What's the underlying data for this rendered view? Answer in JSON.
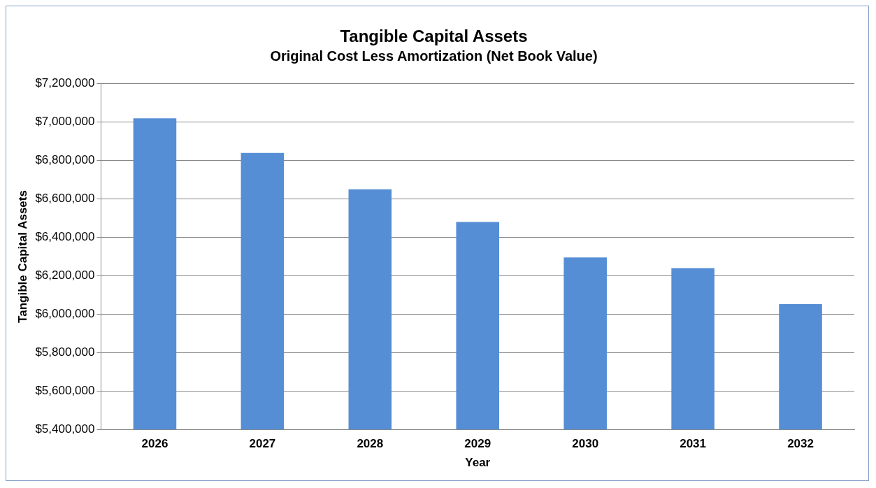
{
  "chart_data": {
    "type": "bar",
    "title": "Tangible Capital Assets",
    "subtitle": "Original Cost Less Amortization (Net Book Value)",
    "xlabel": "Year",
    "ylabel": "Tangible Capital Assets",
    "categories": [
      "2026",
      "2027",
      "2028",
      "2029",
      "2030",
      "2031",
      "2032"
    ],
    "values": [
      7020000,
      6840000,
      6650000,
      6480000,
      6295000,
      6240000,
      6052000
    ],
    "color": "#558ed5",
    "ylim": [
      5400000,
      7200000
    ],
    "yticks": [
      {
        "value": 5400000,
        "label": "$5,400,000"
      },
      {
        "value": 5600000,
        "label": "$5,600,000"
      },
      {
        "value": 5800000,
        "label": "$5,800,000"
      },
      {
        "value": 6000000,
        "label": "$6,000,000"
      },
      {
        "value": 6200000,
        "label": "$6,200,000"
      },
      {
        "value": 6400000,
        "label": "$6,400,000"
      },
      {
        "value": 6600000,
        "label": "$6,600,000"
      },
      {
        "value": 6800000,
        "label": "$6,800,000"
      },
      {
        "value": 7000000,
        "label": "$7,000,000"
      },
      {
        "value": 7200000,
        "label": "$7,200,000"
      }
    ],
    "grid": "y",
    "legend": false
  }
}
